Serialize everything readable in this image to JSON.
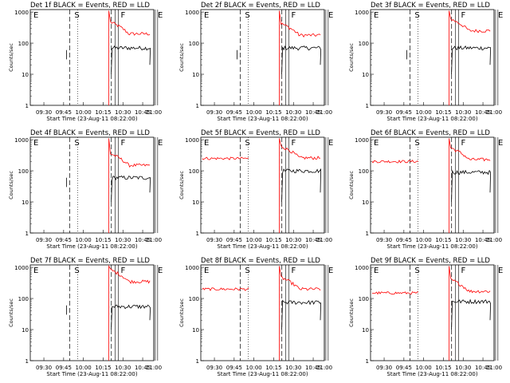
{
  "chart_data": {
    "type": "line",
    "shared": {
      "xlabel": "Start Time (23-Aug-11 08:22:00)",
      "ylabel": "Counts/sec",
      "xticks": [
        "09:30",
        "09:45",
        "10:00",
        "10:15",
        "10:30",
        "10:45",
        "11:00"
      ],
      "yticks": [
        "1",
        "10",
        "100",
        "1000"
      ],
      "ylim": [
        1,
        1200
      ],
      "yscale": "log",
      "series_colors": {
        "events": "#000000",
        "lld": "#ff0000"
      },
      "markers": [
        "E",
        "S",
        "F",
        "E"
      ]
    },
    "panels": [
      {
        "title": "Det 1f BLACK = Events, RED = LLD",
        "lld_level": 200,
        "events_level": 70,
        "lld_pre": null,
        "events_pre": 50,
        "dash1": 51,
        "dash2": 105,
        "vline1": 110,
        "vline2": 160,
        "vline3": 165,
        "fline": 114,
        "eline": 162
      },
      {
        "title": "Det 2f BLACK = Events, RED = LLD",
        "lld_level": 180,
        "events_level": 70,
        "lld_pre": null,
        "events_pre": 50,
        "dash1": 51,
        "dash2": 105,
        "vline1": 110,
        "vline2": 160,
        "vline3": 165,
        "fline": 114,
        "eline": 162
      },
      {
        "title": "Det 3f BLACK = Events, RED = LLD",
        "lld_level": 250,
        "events_level": 70,
        "lld_pre": null,
        "events_pre": 50,
        "dash1": 51,
        "dash2": 105,
        "vline1": 110,
        "vline2": 160,
        "vline3": 165,
        "fline": 114,
        "eline": 162
      },
      {
        "title": "Det 4f BLACK = Events, RED = LLD",
        "lld_level": 150,
        "events_level": 60,
        "lld_pre": null,
        "events_pre": 50,
        "dash1": 51,
        "dash2": 105,
        "vline1": 110,
        "vline2": 160,
        "vline3": 165,
        "fline": 114,
        "eline": 162
      },
      {
        "title": "Det 5f BLACK = Events, RED = LLD",
        "lld_level": 260,
        "events_level": 100,
        "lld_pre": 250,
        "events_pre": null,
        "dash1": 51,
        "dash2": 105,
        "vline1": 110,
        "vline2": 160,
        "vline3": 165,
        "fline": 114,
        "eline": 162
      },
      {
        "title": "Det 6f BLACK = Events, RED = LLD",
        "lld_level": 230,
        "events_level": 90,
        "lld_pre": 200,
        "events_pre": null,
        "dash1": 51,
        "dash2": 105,
        "vline1": 110,
        "vline2": 160,
        "vline3": 165,
        "fline": 114,
        "eline": 162
      },
      {
        "title": "Det 7f BLACK = Events, RED = LLD",
        "lld_level": 350,
        "events_level": 55,
        "lld_pre": null,
        "events_pre": 50,
        "dash1": 51,
        "dash2": 105,
        "vline1": 110,
        "vline2": 160,
        "vline3": 165,
        "fline": 114,
        "eline": 162
      },
      {
        "title": "Det 8f BLACK = Events, RED = LLD",
        "lld_level": 200,
        "events_level": 75,
        "lld_pre": 200,
        "events_pre": null,
        "dash1": 51,
        "dash2": 105,
        "vline1": 110,
        "vline2": 160,
        "vline3": 165,
        "fline": 114,
        "eline": 162
      },
      {
        "title": "Det 9f BLACK = Events, RED = LLD",
        "lld_level": 170,
        "events_level": 80,
        "lld_pre": 150,
        "events_pre": null,
        "dash1": 51,
        "dash2": 105,
        "vline1": 110,
        "vline2": 160,
        "vline3": 165,
        "fline": 114,
        "eline": 162
      }
    ]
  }
}
